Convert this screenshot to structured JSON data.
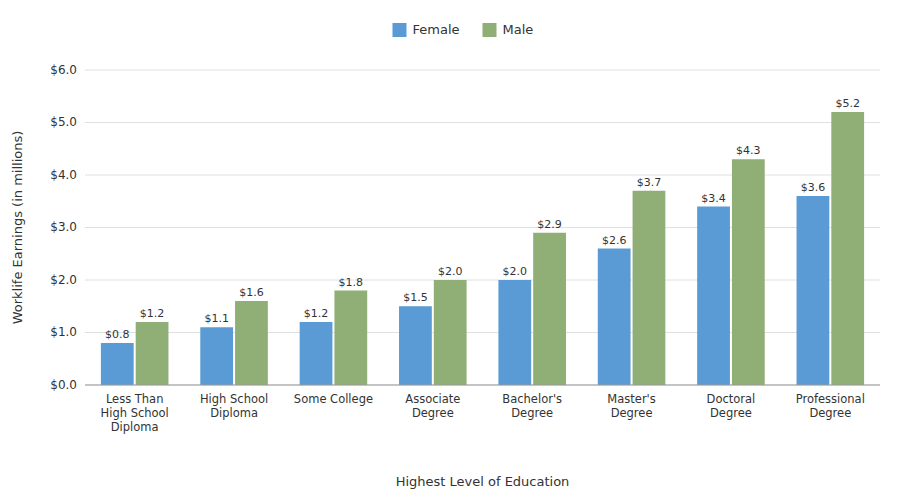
{
  "chart_data": {
    "type": "bar",
    "categories": [
      "Less Than\nHigh School\nDiploma",
      "High School\nDiploma",
      "Some College",
      "Associate\nDegree",
      "Bachelor's\nDegree",
      "Master's\nDegree",
      "Doctoral\nDegree",
      "Professional\nDegree"
    ],
    "series": [
      {
        "name": "Female",
        "color": "#5B9BD5",
        "values": [
          0.8,
          1.1,
          1.2,
          1.5,
          2.0,
          2.6,
          3.4,
          3.6
        ],
        "value_labels": [
          "$0.8",
          "$1.1",
          "$1.2",
          "$1.5",
          "$2.0",
          "$2.6",
          "$3.4",
          "$3.6"
        ]
      },
      {
        "name": "Male",
        "color": "#8FAF77",
        "values": [
          1.2,
          1.6,
          1.8,
          2.0,
          2.9,
          3.7,
          4.3,
          5.2
        ],
        "value_labels": [
          "$1.2",
          "$1.6",
          "$1.8",
          "$2.0",
          "$2.9",
          "$3.7",
          "$4.3",
          "$5.2"
        ]
      }
    ],
    "xlabel": "Highest Level of Education",
    "ylabel": "Worklife Earnings (in millions)",
    "ylim": [
      0,
      6.0
    ],
    "yticks": [
      {
        "value": 0.0,
        "label": "$0.0"
      },
      {
        "value": 1.0,
        "label": "$1.0"
      },
      {
        "value": 2.0,
        "label": "$2.0"
      },
      {
        "value": 3.0,
        "label": "$3.0"
      },
      {
        "value": 4.0,
        "label": "$4.0"
      },
      {
        "value": 5.0,
        "label": "$5.0"
      },
      {
        "value": 6.0,
        "label": "$6.0"
      }
    ],
    "grid": true,
    "legend": "top",
    "data_labels": true
  }
}
